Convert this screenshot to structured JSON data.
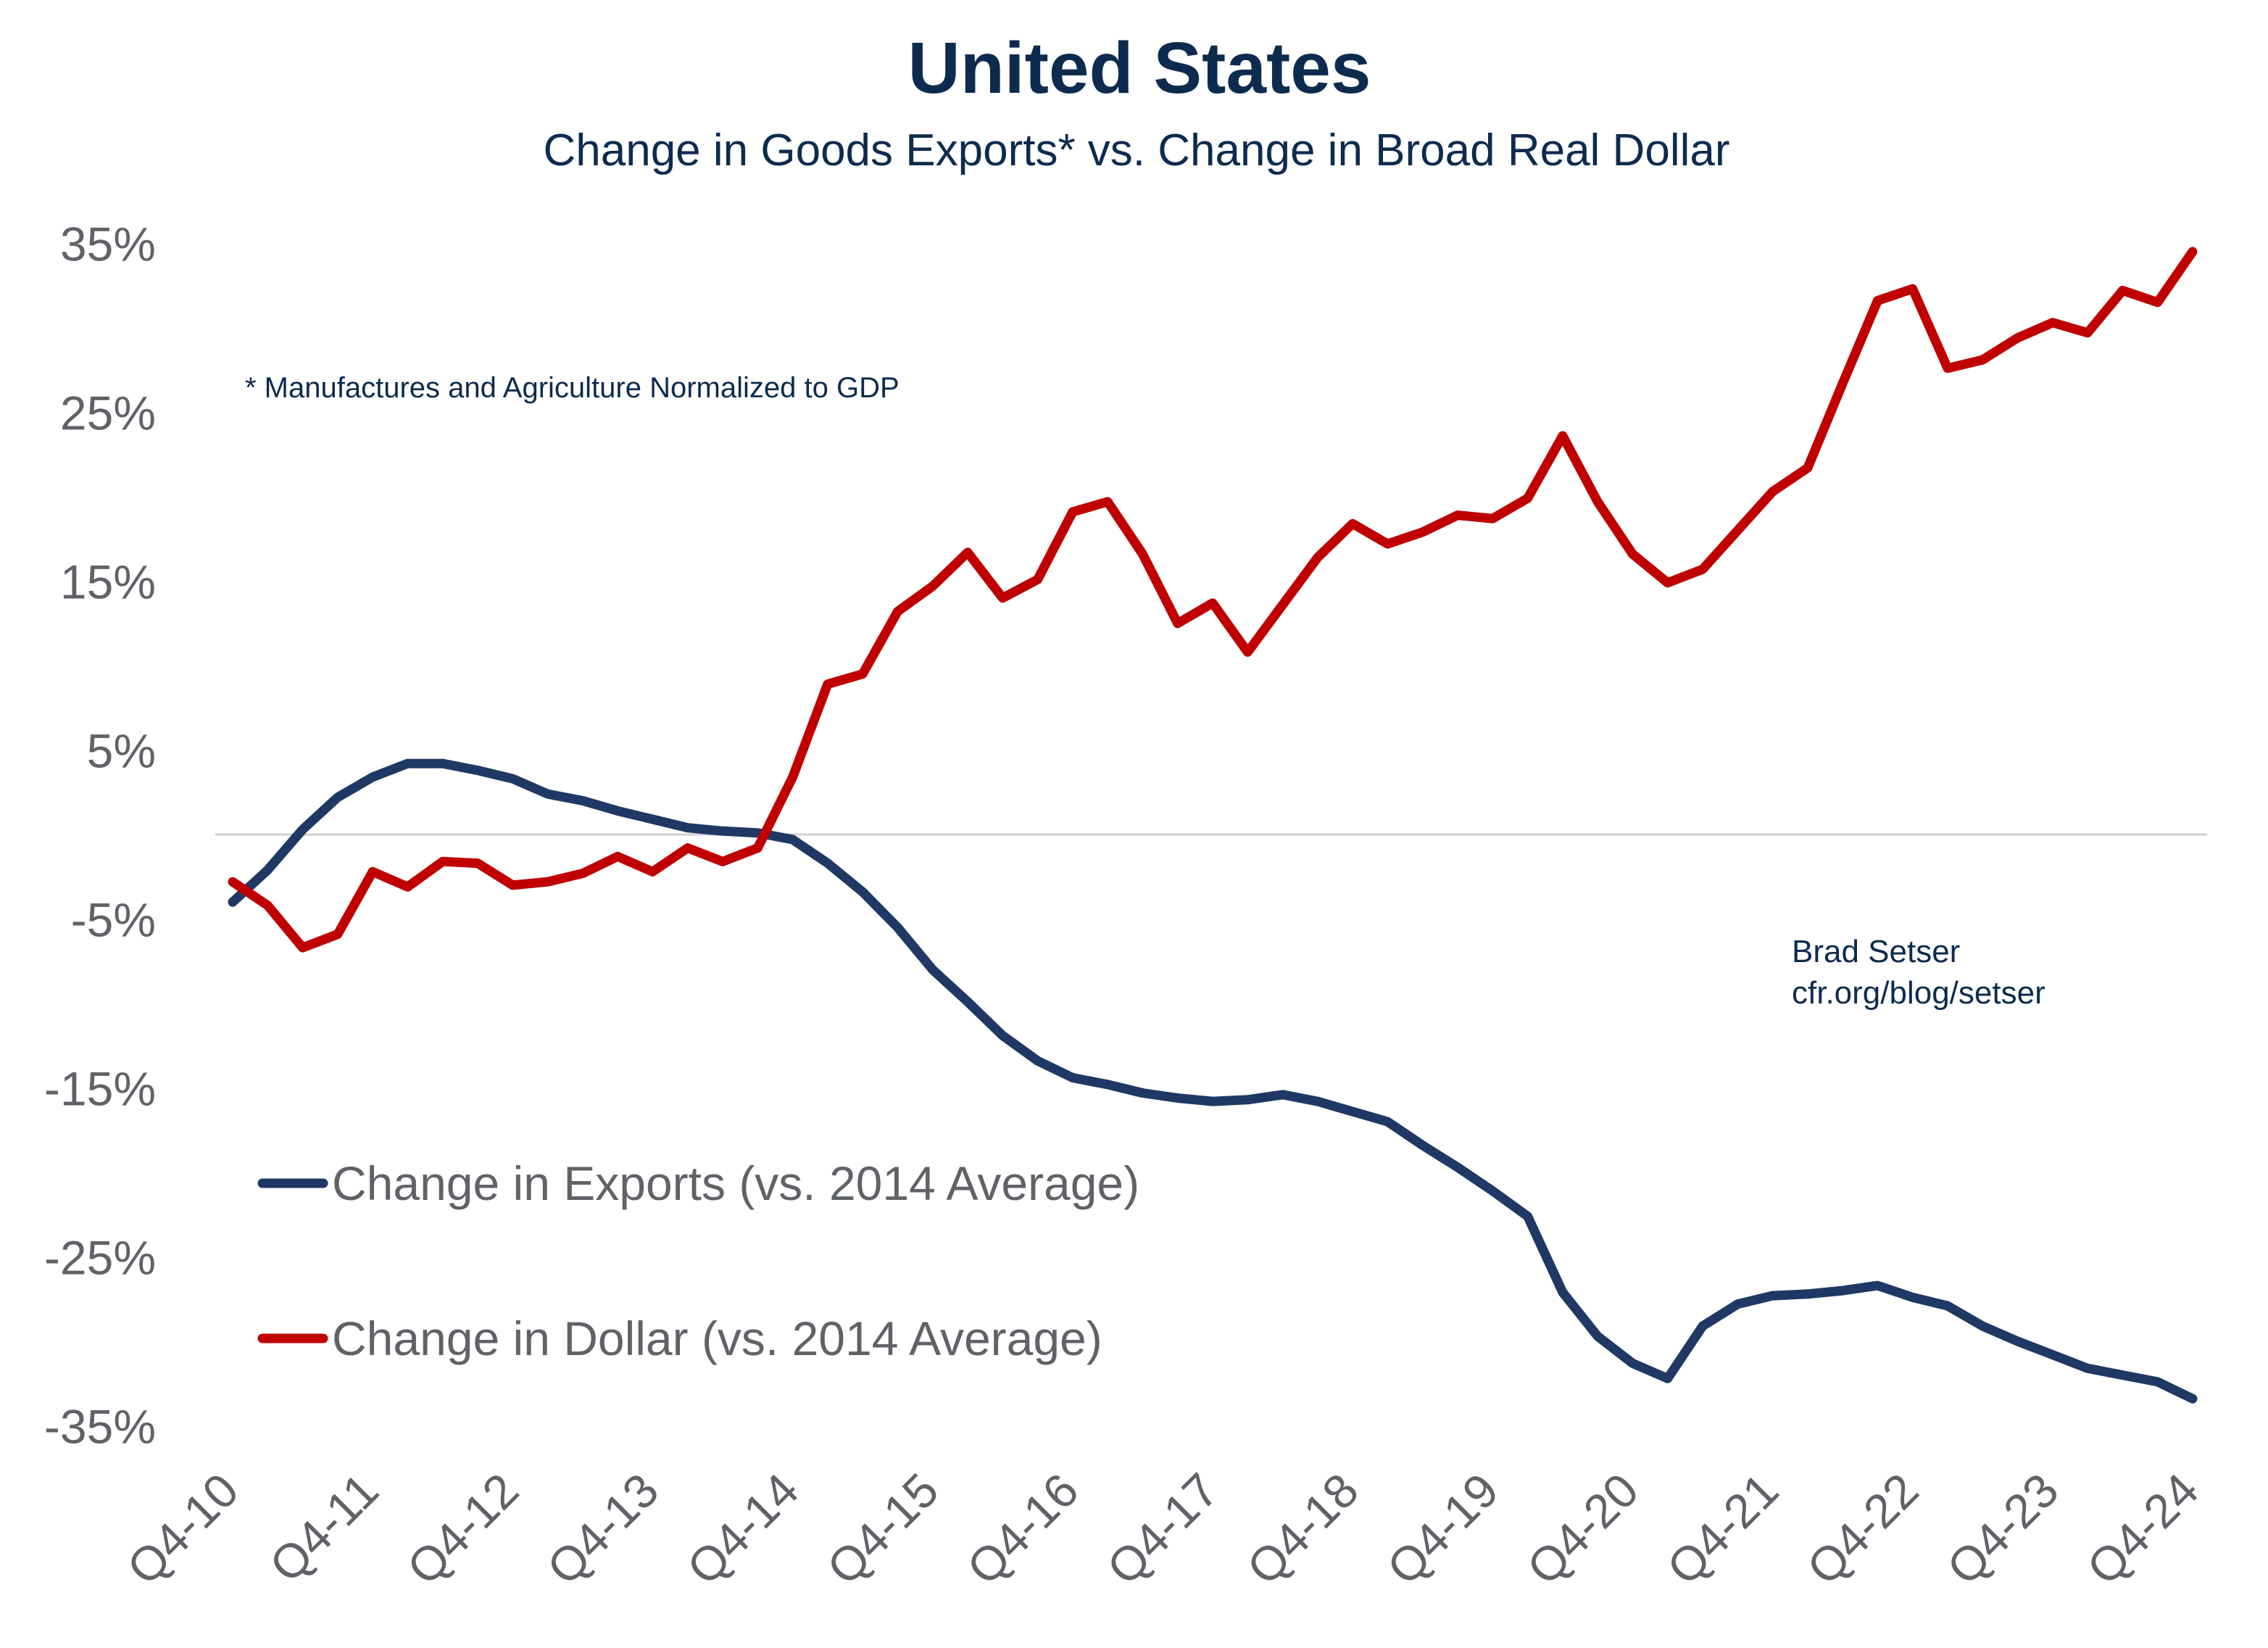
{
  "chart_data": {
    "type": "line",
    "title": "United States",
    "subtitle": "Change in Goods Exports* vs. Change in Broad Real Dollar",
    "footnote": "* Manufactures and Agriculture Normalized to GDP",
    "credit": [
      "Brad Setser",
      "cfr.org/blog/setser"
    ],
    "xlabel": "",
    "ylabel": "",
    "ylim": [
      -35,
      35
    ],
    "y_ticks": [
      "35%",
      "25%",
      "15%",
      "5%",
      "-5%",
      "-15%",
      "-25%",
      "-35%"
    ],
    "y_tick_values": [
      35,
      25,
      15,
      5,
      -5,
      -15,
      -25,
      -35
    ],
    "x_ticks": [
      "Q4-10",
      "Q4-11",
      "Q4-12",
      "Q4-13",
      "Q4-14",
      "Q4-15",
      "Q4-16",
      "Q4-17",
      "Q4-18",
      "Q4-19",
      "Q4-20",
      "Q4-21",
      "Q4-22",
      "Q4-23",
      "Q4-24"
    ],
    "x_range": [
      "Q4-10",
      "Q4-24"
    ],
    "frequency": "quarterly",
    "grid": "zero line only",
    "legend_position": "lower-left",
    "series": [
      {
        "name": "Change in Exports (vs. 2014 Average)",
        "color": "#1f3864",
        "values": [
          -4.0,
          -2.1,
          0.3,
          2.2,
          3.4,
          4.2,
          4.2,
          3.8,
          3.3,
          2.4,
          2.0,
          1.4,
          0.9,
          0.4,
          0.2,
          0.1,
          -0.3,
          -1.7,
          -3.4,
          -5.5,
          -8.0,
          -9.9,
          -11.9,
          -13.4,
          -14.4,
          -14.8,
          -15.3,
          -15.6,
          -15.8,
          -15.7,
          -15.4,
          -15.8,
          -16.4,
          -17.0,
          -18.4,
          -19.7,
          -21.1,
          -22.6,
          -27.1,
          -29.7,
          -31.3,
          -32.2,
          -29.1,
          -27.8,
          -27.3,
          -27.2,
          -27.0,
          -26.7,
          -27.4,
          -27.9,
          -29.1,
          -30.0,
          -30.8,
          -31.6,
          -32.0,
          -32.4,
          -33.4
        ]
      },
      {
        "name": "Change in Dollar (vs. 2014 Average)",
        "color": "#c00000",
        "values": [
          -2.8,
          -4.2,
          -6.7,
          -5.9,
          -2.2,
          -3.1,
          -1.6,
          -1.7,
          -3.0,
          -2.8,
          -2.3,
          -1.3,
          -2.2,
          -0.8,
          -1.6,
          -0.8,
          3.4,
          8.9,
          9.5,
          13.2,
          14.7,
          16.7,
          14.0,
          15.1,
          19.1,
          19.7,
          16.6,
          12.5,
          13.7,
          10.8,
          13.6,
          16.4,
          18.4,
          17.2,
          17.9,
          18.9,
          18.7,
          19.9,
          23.6,
          19.7,
          16.6,
          14.9,
          15.7,
          18.0,
          20.3,
          21.7,
          26.7,
          31.6,
          32.3,
          27.6,
          28.1,
          29.4,
          30.3,
          29.7,
          32.2,
          31.5,
          34.5
        ]
      }
    ]
  }
}
